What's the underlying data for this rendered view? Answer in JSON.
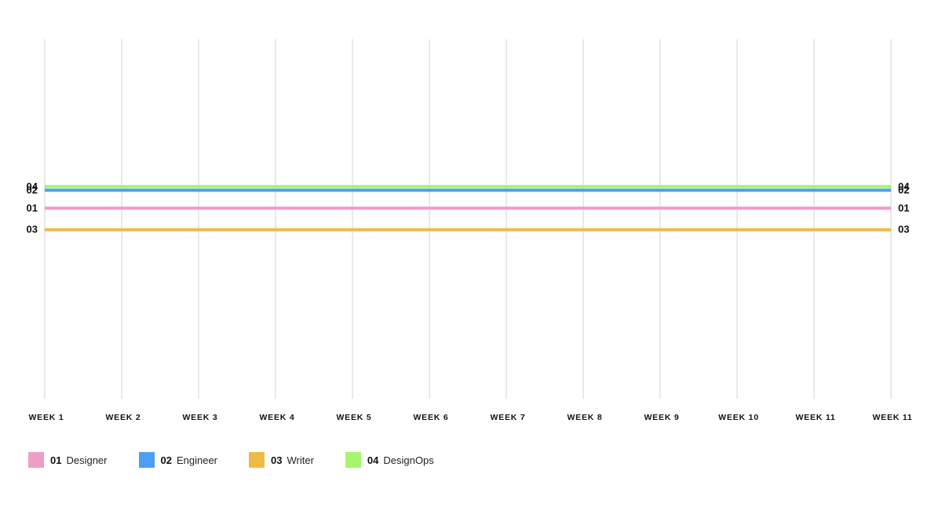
{
  "chart_data": {
    "type": "line",
    "categories": [
      "WEEK 1",
      "WEEK 2",
      "WEEK 3",
      "WEEK 4",
      "WEEK 5",
      "WEEK 6",
      "WEEK 7",
      "WEEK 8",
      "WEEK 9",
      "WEEK 10",
      "WEEK 11",
      "WEEK 11"
    ],
    "grid": true,
    "legend_position": "bottom-left",
    "series": [
      {
        "code": "01",
        "name": "Designer",
        "color": "#F09CC9",
        "values": [
          0.53,
          0.53,
          0.53,
          0.53,
          0.53,
          0.53,
          0.53,
          0.53,
          0.53,
          0.53,
          0.53,
          0.53
        ]
      },
      {
        "code": "02",
        "name": "Engineer",
        "color": "#4E9EF3",
        "values": [
          0.58,
          0.58,
          0.58,
          0.58,
          0.58,
          0.58,
          0.58,
          0.58,
          0.58,
          0.58,
          0.58,
          0.58
        ]
      },
      {
        "code": "03",
        "name": "Writer",
        "color": "#EEBB45",
        "values": [
          0.47,
          0.47,
          0.47,
          0.47,
          0.47,
          0.47,
          0.47,
          0.47,
          0.47,
          0.47,
          0.47,
          0.47
        ]
      },
      {
        "code": "04",
        "name": "DesignOps",
        "color": "#A6F56C",
        "values": [
          0.59,
          0.59,
          0.59,
          0.59,
          0.59,
          0.59,
          0.59,
          0.59,
          0.59,
          0.59,
          0.59,
          0.59
        ]
      }
    ]
  },
  "colors": {
    "grid": "#E2E2E2",
    "text": "#111111"
  }
}
